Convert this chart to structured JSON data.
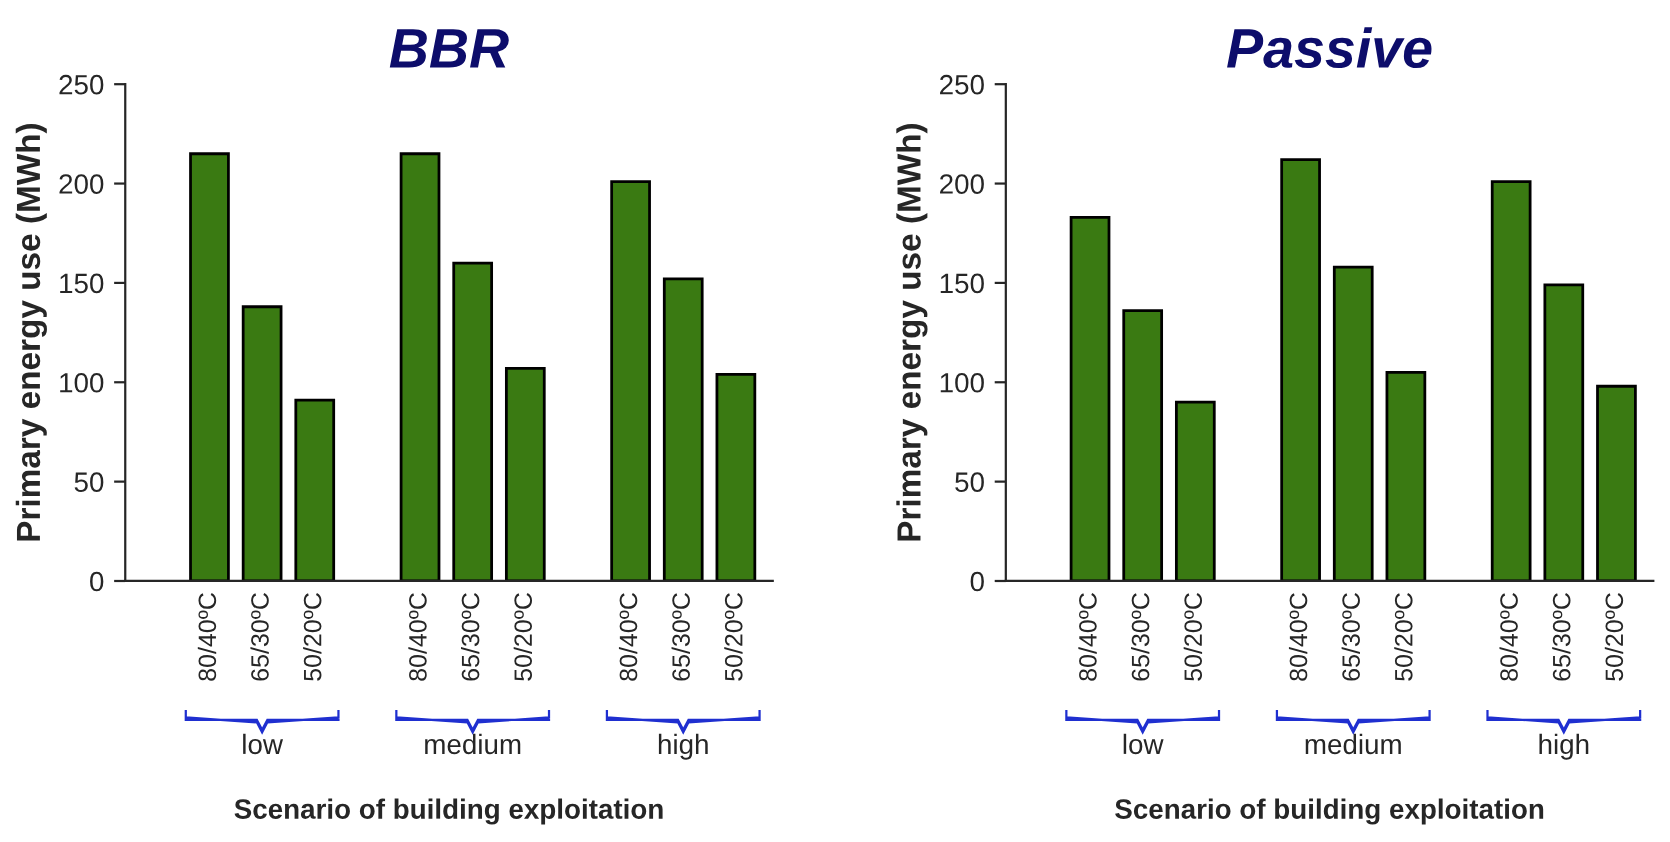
{
  "chart_data": [
    {
      "type": "bar",
      "title": "BBR",
      "ylabel": "Primary energy use (MWh)",
      "xlabel": "Scenario of building exploitation",
      "categories": [
        "80/40ºC",
        "65/30ºC",
        "50/20ºC",
        null,
        "80/40ºC",
        "65/30ºC",
        "50/20ºC",
        null,
        "80/40ºC",
        "65/30ºC",
        "50/20ºC"
      ],
      "values": [
        215,
        138,
        91,
        null,
        215,
        160,
        107,
        null,
        201,
        152,
        104
      ],
      "color": "#3a7a12",
      "ylim": [
        0,
        250
      ],
      "yticks": [
        0,
        50,
        100,
        150,
        200,
        250
      ],
      "annotations": [
        "low",
        "medium",
        "high"
      ]
    },
    {
      "type": "bar",
      "title": "Passive",
      "ylabel": "Primary energy use (MWh)",
      "xlabel": "Scenario of building exploitation",
      "categories": [
        "80/40ºC",
        "65/30ºC",
        "50/20ºC",
        null,
        "80/40ºC",
        "65/30ºC",
        "50/20ºC",
        null,
        "80/40ºC",
        "65/30ºC",
        "50/20ºC"
      ],
      "values": [
        183,
        136,
        90,
        null,
        212,
        158,
        105,
        null,
        201,
        149,
        98
      ],
      "color": "#3a7a12",
      "ylim": [
        0,
        250
      ],
      "yticks": [
        0,
        50,
        100,
        150,
        200,
        250
      ],
      "annotations": [
        "low",
        "medium",
        "high"
      ]
    }
  ]
}
